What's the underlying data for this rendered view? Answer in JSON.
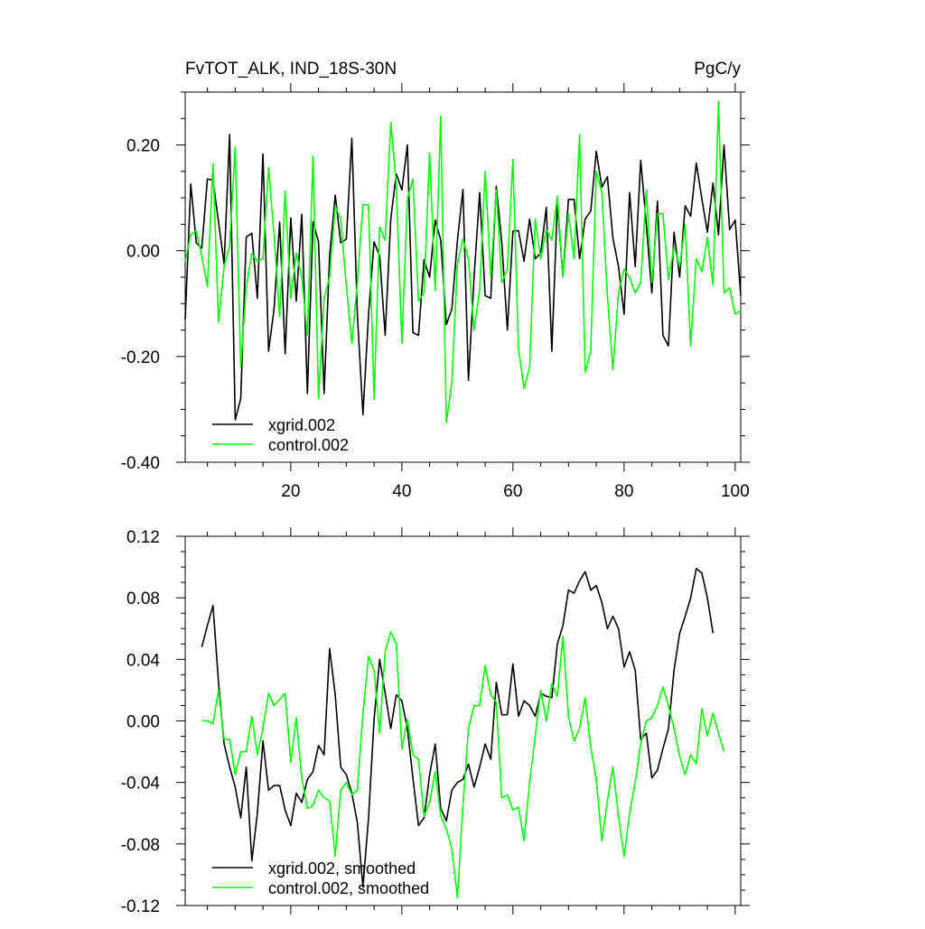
{
  "colors": {
    "series1": "#000000",
    "series2": "#00ff00",
    "axis": "#000000"
  },
  "chart_data": [
    {
      "type": "line",
      "title_left": "FvTOT_ALK, IND_18S-30N",
      "title_right": "PgC/y",
      "xlim": [
        1,
        101
      ],
      "ylim": [
        -0.4,
        0.3
      ],
      "x_ticks": [
        20,
        40,
        60,
        80,
        100
      ],
      "x_tick_labels": [
        "20",
        "40",
        "60",
        "80",
        "100"
      ],
      "y_ticks": [
        -0.4,
        -0.2,
        0.0,
        0.2
      ],
      "y_tick_labels": [
        "-0.40",
        "-0.20",
        "0.00",
        "0.20"
      ],
      "x_start": 1,
      "legend_position": "bottom-left",
      "series": [
        {
          "name": "xgrid.002",
          "color": "#000000",
          "values": [
            -0.13,
            0.126,
            0.015,
            0.005,
            0.136,
            0.133,
            0.055,
            -0.025,
            0.22,
            -0.32,
            -0.28,
            0.026,
            0.033,
            -0.09,
            0.183,
            -0.19,
            -0.11,
            0.054,
            -0.195,
            0.062,
            -0.095,
            0.069,
            -0.27,
            0.055,
            0.017,
            -0.27,
            -0.01,
            0.105,
            0.015,
            0.022,
            0.213,
            -0.12,
            -0.31,
            -0.12,
            0.017,
            -0.01,
            -0.16,
            0.06,
            0.145,
            0.115,
            0.2,
            -0.155,
            -0.16,
            -0.017,
            -0.05,
            0.058,
            0.02,
            -0.14,
            -0.11,
            0.02,
            0.116,
            -0.245,
            -0.05,
            0.11,
            -0.085,
            -0.09,
            0.122,
            0.015,
            -0.15,
            0.037,
            0.038,
            -0.02,
            0.06,
            -0.015,
            -0.005,
            0.082,
            -0.19,
            0.09,
            -0.05,
            0.097,
            0.097,
            -0.015,
            0.06,
            0.075,
            0.188,
            0.12,
            0.14,
            0.024,
            -0.03,
            -0.12,
            0.11,
            -0.03,
            0.171,
            0.05,
            -0.08,
            0.094,
            -0.16,
            -0.18,
            0.035,
            -0.05,
            0.085,
            0.065,
            0.166,
            0.098,
            0.035,
            0.128,
            0.03,
            0.2,
            0.04,
            0.058,
            -0.085
          ]
        },
        {
          "name": "control.002",
          "color": "#00ff00",
          "values": [
            -0.02,
            0.03,
            0.038,
            -0.01,
            -0.068,
            0.165,
            -0.135,
            -0.03,
            0.01,
            0.196,
            -0.22,
            -0.07,
            -0.005,
            -0.02,
            -0.015,
            0.157,
            0.03,
            -0.125,
            0.113,
            -0.09,
            -0.005,
            -0.05,
            -0.16,
            0.179,
            -0.28,
            -0.09,
            -0.05,
            0.085,
            0.06,
            -0.065,
            -0.175,
            -0.06,
            0.087,
            0.087,
            -0.28,
            0.045,
            0.02,
            0.243,
            0.127,
            -0.175,
            0.098,
            0.136,
            -0.095,
            -0.08,
            0.185,
            -0.075,
            0.255,
            -0.325,
            -0.25,
            -0.025,
            0.022,
            -0.015,
            -0.15,
            -0.075,
            0.15,
            -0.05,
            0.115,
            -0.06,
            -0.035,
            0.173,
            -0.185,
            -0.26,
            -0.22,
            0.06,
            -0.015,
            0.04,
            0.02,
            0.103,
            -0.05,
            0.07,
            -0.015,
            0.219,
            -0.23,
            -0.19,
            0.15,
            0.11,
            -0.085,
            -0.225,
            -0.08,
            -0.035,
            -0.05,
            -0.08,
            -0.06,
            0.115,
            -0.06,
            0.07,
            0.07,
            -0.055,
            0.008,
            -0.03,
            0.05,
            -0.18,
            -0.015,
            -0.04,
            0.025,
            -0.065,
            0.283,
            -0.08,
            -0.07,
            -0.12,
            -0.113
          ]
        }
      ]
    },
    {
      "type": "line",
      "xlim": [
        1,
        101
      ],
      "ylim": [
        -0.12,
        0.12
      ],
      "x_ticks": [
        20,
        40,
        60,
        80,
        100
      ],
      "y_ticks": [
        -0.12,
        -0.08,
        -0.04,
        0.0,
        0.04,
        0.08,
        0.12
      ],
      "y_tick_labels": [
        "-0.12",
        "-0.08",
        "-0.04",
        "0.00",
        "0.04",
        "0.08",
        "0.12"
      ],
      "x_start": 4,
      "legend_position": "bottom-left",
      "series": [
        {
          "name": "xgrid.002, smoothed",
          "color": "#000000",
          "values": [
            0.048,
            0.062,
            0.075,
            0.025,
            -0.015,
            -0.03,
            -0.043,
            -0.063,
            -0.03,
            -0.091,
            -0.06,
            -0.013,
            -0.045,
            -0.042,
            -0.042,
            -0.058,
            -0.068,
            -0.047,
            -0.053,
            -0.038,
            -0.033,
            -0.016,
            -0.022,
            0.047,
            0.017,
            -0.03,
            -0.035,
            -0.047,
            -0.066,
            -0.108,
            -0.063,
            0.001,
            0.04,
            0.018,
            -0.005,
            0.017,
            0.013,
            -0.005,
            -0.037,
            -0.068,
            -0.063,
            -0.035,
            -0.015,
            -0.057,
            -0.065,
            -0.045,
            -0.04,
            -0.038,
            -0.028,
            -0.043,
            -0.03,
            -0.015,
            -0.025,
            0.025,
            0.004,
            0.004,
            0.037,
            0.003,
            0.013,
            0.01,
            0.003,
            0.018,
            0.016,
            0.015,
            0.05,
            0.062,
            0.085,
            0.083,
            0.091,
            0.097,
            0.085,
            0.088,
            0.077,
            0.06,
            0.068,
            0.06,
            0.035,
            0.045,
            0.033,
            -0.012,
            -0.008,
            -0.037,
            -0.032,
            -0.018,
            -0.005,
            0.033,
            0.057,
            0.068,
            0.08,
            0.099,
            0.096,
            0.08,
            0.057
          ]
        },
        {
          "name": "control.002, smoothed",
          "color": "#00ff00",
          "values": [
            0.0,
            0.0,
            -0.002,
            0.02,
            -0.012,
            -0.012,
            -0.035,
            -0.02,
            -0.02,
            0.003,
            -0.022,
            -0.005,
            0.018,
            0.01,
            0.014,
            0.018,
            -0.027,
            0.002,
            -0.037,
            -0.057,
            -0.055,
            -0.045,
            -0.05,
            -0.052,
            -0.088,
            -0.045,
            -0.04,
            -0.048,
            -0.045,
            0.005,
            0.042,
            0.033,
            -0.008,
            0.045,
            0.058,
            0.05,
            -0.018,
            0.001,
            -0.022,
            -0.025,
            -0.062,
            -0.053,
            -0.033,
            -0.062,
            -0.07,
            -0.083,
            -0.115,
            -0.055,
            -0.005,
            0.01,
            0.01,
            0.036,
            0.017,
            0.012,
            -0.05,
            -0.048,
            -0.058,
            -0.056,
            -0.078,
            -0.04,
            -0.01,
            0.02,
            0.0,
            0.024,
            0.016,
            0.055,
            0.003,
            -0.013,
            -0.005,
            0.015,
            -0.017,
            -0.038,
            -0.078,
            -0.052,
            -0.03,
            -0.062,
            -0.088,
            -0.06,
            -0.04,
            -0.015,
            0.0,
            0.002,
            0.01,
            0.022,
            0.01,
            -0.005,
            -0.023,
            -0.035,
            -0.022,
            -0.028,
            0.008,
            -0.01,
            0.005,
            -0.008,
            -0.02
          ]
        }
      ]
    }
  ]
}
